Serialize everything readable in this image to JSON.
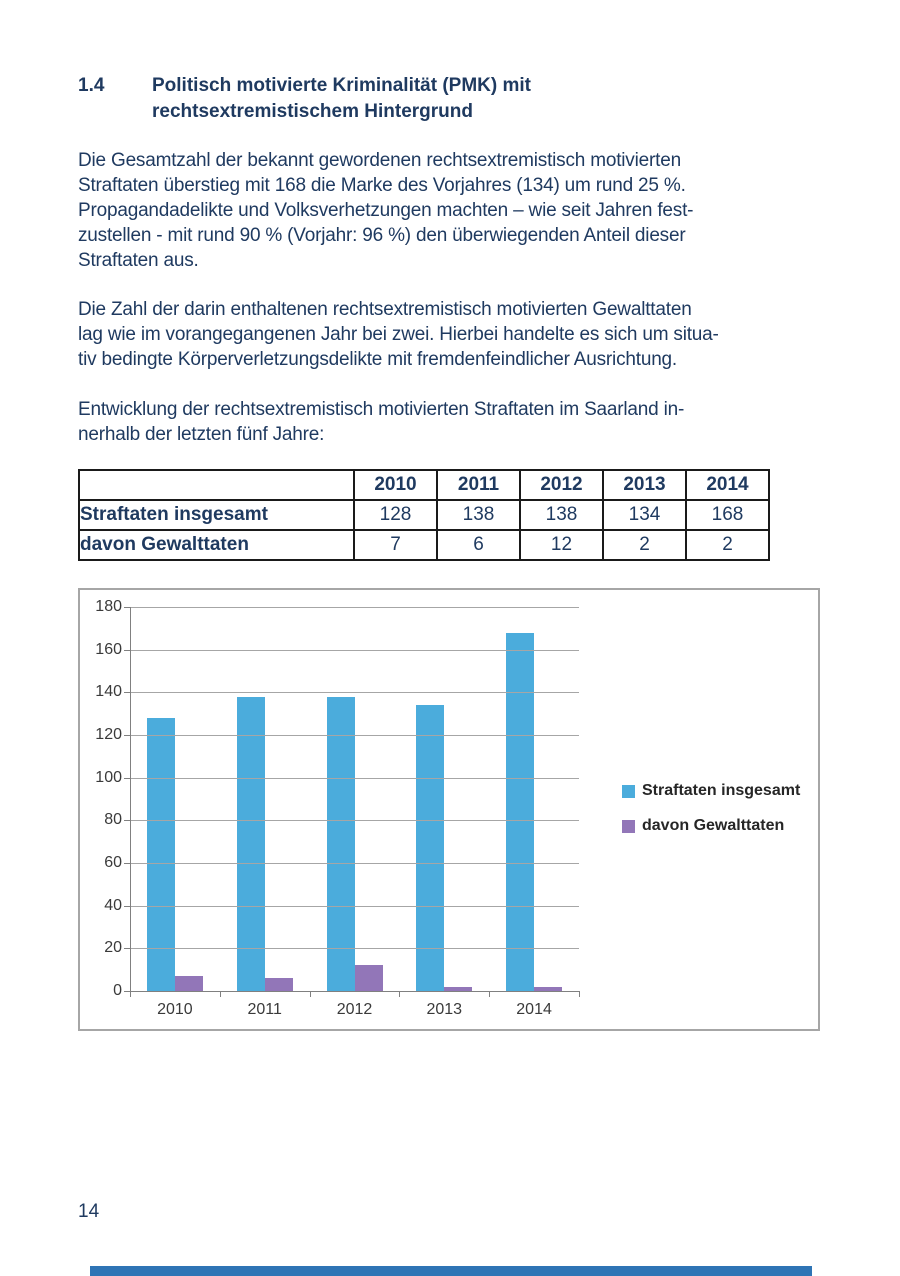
{
  "page": {
    "number": "14",
    "accent_color": "#2e74b5"
  },
  "heading": {
    "number": "1.4",
    "lines": [
      "Politisch motivierte Kriminalität (PMK) mit",
      "rechtsextremistischem Hintergrund"
    ]
  },
  "paragraphs": [
    {
      "lines": [
        "Die Gesamtzahl der bekannt gewordenen rechtsextremistisch motivierten",
        "Straftaten überstieg mit 168 die Marke des Vorjahres (134) um rund 25 %.",
        "Propagandadelikte und Volksverhetzungen machten – wie seit Jahren fest-",
        "zustellen - mit rund 90 % (Vorjahr: 96 %) den überwiegenden Anteil dieser",
        "Straftaten aus."
      ]
    },
    {
      "lines": [
        "Die Zahl der darin enthaltenen rechtsextremistisch motivierten Gewalttaten",
        "lag wie im vorangegangenen Jahr bei zwei. Hierbei handelte es sich um situa-",
        "tiv bedingte Körperverletzungsdelikte mit fremdenfeindlicher Ausrichtung."
      ]
    },
    {
      "lines": [
        "Entwicklung der rechtsextremistisch motivierten Straftaten im Saarland in-",
        "nerhalb der letzten fünf Jahre:"
      ]
    }
  ],
  "table": {
    "header": [
      "",
      "2010",
      "2011",
      "2012",
      "2013",
      "2014"
    ],
    "rows": [
      {
        "label": "Straftaten insgesamt",
        "values": [
          "128",
          "138",
          "138",
          "134",
          "168"
        ]
      },
      {
        "label": "davon Gewalttaten",
        "values": [
          "7",
          "6",
          "12",
          "2",
          "2"
        ]
      }
    ]
  },
  "chart_data": {
    "type": "bar",
    "categories": [
      "2010",
      "2011",
      "2012",
      "2013",
      "2014"
    ],
    "series": [
      {
        "name": "Straftaten insgesamt",
        "color": "#4bacdc",
        "values": [
          128,
          138,
          138,
          134,
          168
        ]
      },
      {
        "name": "davon Gewalttaten",
        "color": "#9276b8",
        "values": [
          7,
          6,
          12,
          2,
          2
        ]
      }
    ],
    "title": "",
    "xlabel": "",
    "ylabel": "",
    "ylim": [
      0,
      180
    ],
    "ytick_step": 20,
    "grid": true,
    "legend_position": "right",
    "gridline_color": "#a6a6a6"
  }
}
